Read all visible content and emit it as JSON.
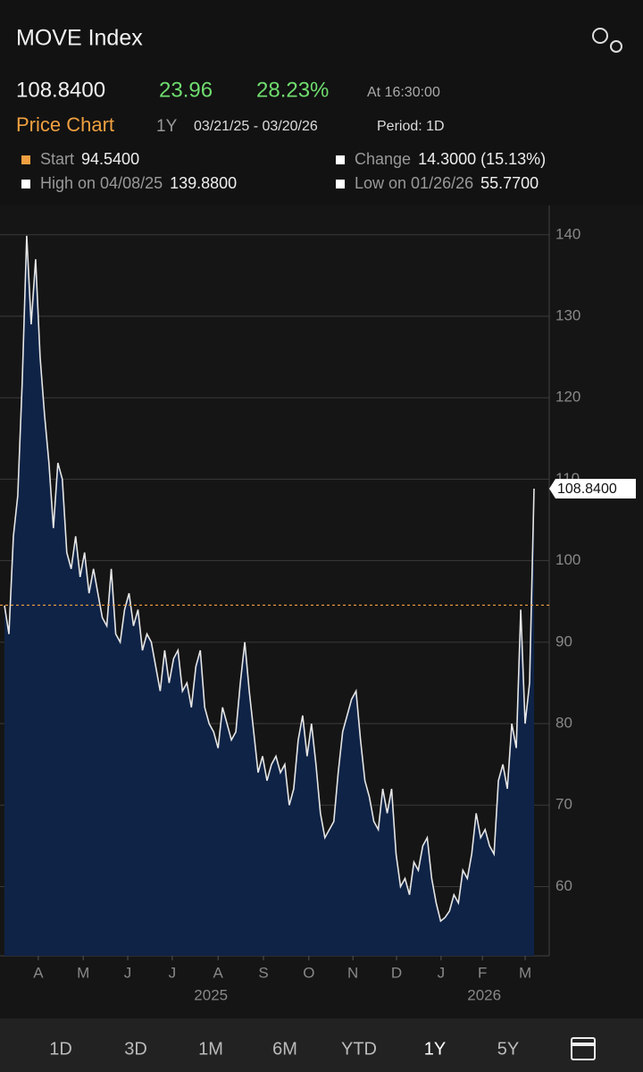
{
  "header": {
    "title": "MOVE Index",
    "price": "108.8400",
    "change": "23.96",
    "change_pct": "28.23%",
    "time": "At 16:30:00",
    "chart_label": "Price Chart",
    "range": "1Y",
    "dates": "03/21/25 - 03/20/26",
    "period": "Period: 1D"
  },
  "stats": [
    {
      "label": "Start",
      "value": "94.5400"
    },
    {
      "label": "Change",
      "value": "14.3000 (15.13%)"
    },
    {
      "label": "High on 04/08/25",
      "value": "139.8800"
    },
    {
      "label": "Low on 01/26/26",
      "value": "55.7700"
    }
  ],
  "chart_data": {
    "type": "line",
    "color": "#e6e6e6",
    "fill": "#0f2346",
    "grid": true,
    "values": [
      94.5,
      91,
      103,
      108,
      122,
      139.88,
      129,
      137,
      125,
      118,
      112,
      104,
      112,
      110,
      101,
      99,
      103,
      98,
      101,
      96,
      99,
      96,
      93,
      92,
      99,
      91,
      90,
      94,
      96,
      92,
      94,
      89,
      91,
      90,
      87,
      84,
      89,
      85,
      88,
      89,
      84,
      85,
      82,
      87,
      89,
      82,
      80,
      79,
      77,
      82,
      80,
      78,
      79,
      85,
      90,
      84,
      79,
      74,
      76,
      73,
      75,
      76,
      74,
      75,
      70,
      72,
      78,
      81,
      76,
      80,
      75,
      69,
      66,
      67,
      68,
      74,
      79,
      81,
      83,
      84,
      78,
      73,
      71,
      68,
      67,
      72,
      69,
      72,
      64,
      60,
      61,
      59,
      63,
      62,
      65,
      66,
      61,
      58,
      55.77,
      56.2,
      57,
      59,
      58,
      62,
      61,
      64,
      69,
      66,
      67,
      65,
      64,
      73,
      75,
      72,
      80,
      77,
      94,
      80,
      85,
      108.84
    ],
    "ylim": [
      51.5,
      142.5
    ],
    "yticks": [
      60,
      70,
      80,
      90,
      100,
      110,
      120,
      130,
      140
    ],
    "reference_line": 94.54,
    "last_label": "108.8400",
    "xticks": [
      {
        "value": 7.6,
        "label": "A"
      },
      {
        "value": 17.7,
        "label": "M"
      },
      {
        "value": 27.7,
        "label": "J"
      },
      {
        "value": 37.7,
        "label": "J"
      },
      {
        "value": 48,
        "label": "A"
      },
      {
        "value": 58.2,
        "label": "S"
      },
      {
        "value": 68.4,
        "label": "O"
      },
      {
        "value": 78.3,
        "label": "N"
      },
      {
        "value": 88.1,
        "label": "D"
      },
      {
        "value": 98.1,
        "label": "J"
      },
      {
        "value": 107.4,
        "label": "F"
      },
      {
        "value": 117,
        "label": "M"
      }
    ],
    "year_labels": [
      {
        "value": 46.4,
        "label": "2025"
      },
      {
        "value": 107.8,
        "label": "2026"
      }
    ]
  },
  "tabs": [
    "1D",
    "3D",
    "1M",
    "6M",
    "YTD",
    "1Y",
    "5Y"
  ]
}
